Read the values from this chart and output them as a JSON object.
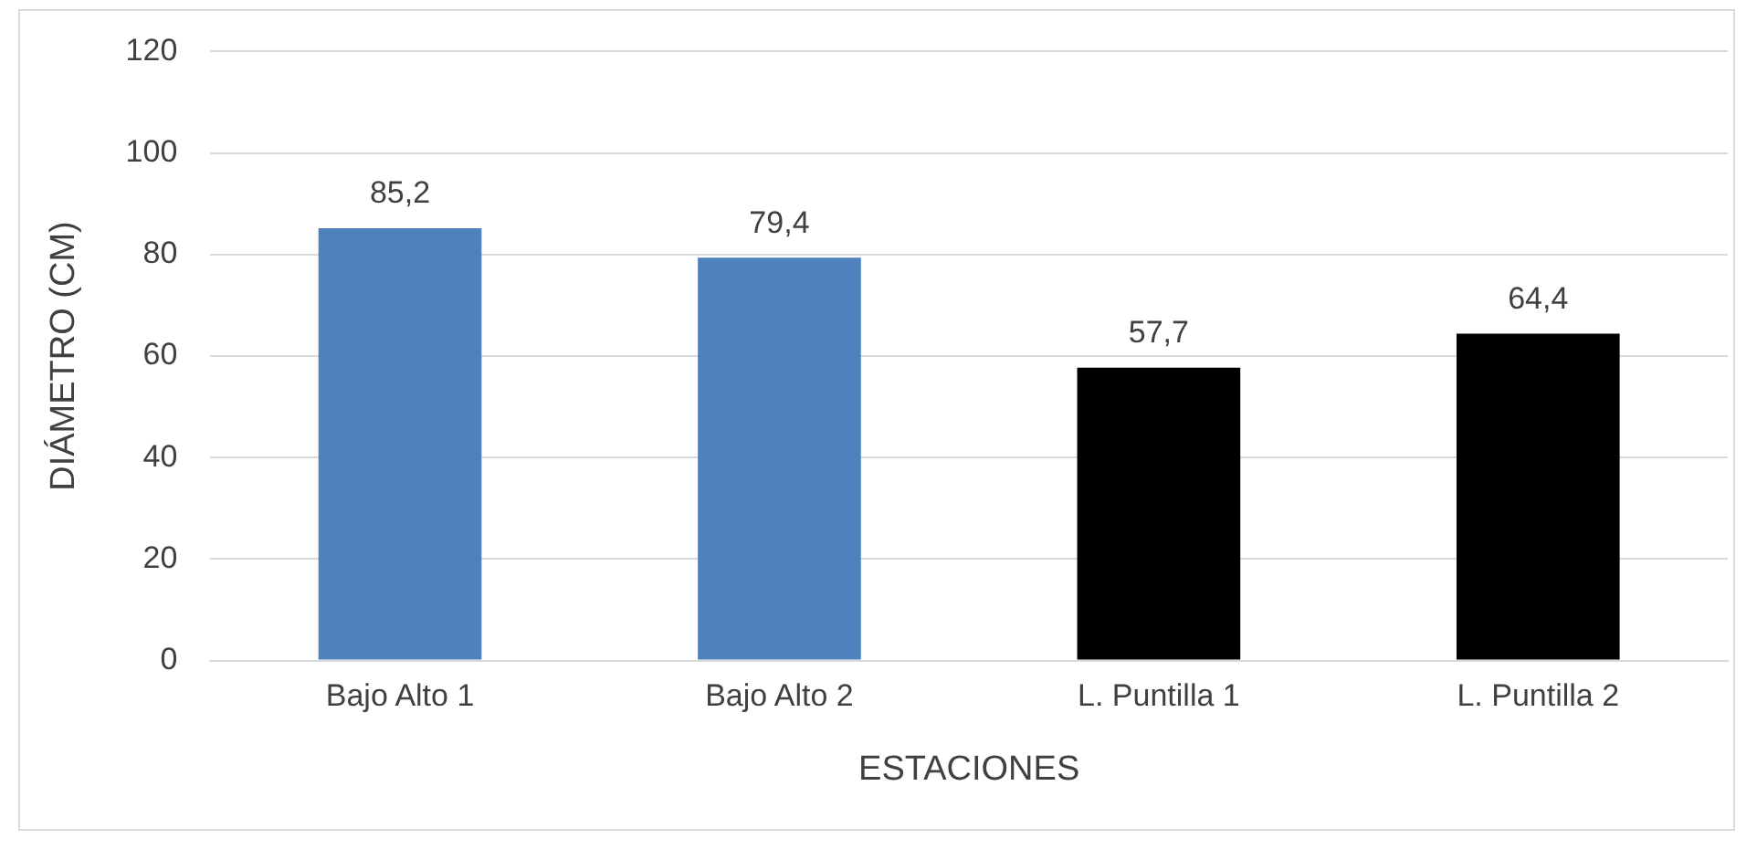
{
  "chart_data": {
    "type": "bar",
    "xlabel": "ESTACIONES",
    "ylabel": "DIÁMETRO (CM)",
    "categories": [
      "Bajo Alto 1",
      "Bajo Alto 2",
      "L. Puntilla 1",
      "L. Puntilla 2"
    ],
    "values": [
      85.2,
      79.4,
      57.7,
      64.4
    ],
    "colors": [
      "#4f81bd",
      "#4f81bd",
      "#000000",
      "#000000"
    ],
    "value_labels": [
      "85,2",
      "79,4",
      "57,7",
      "64,4"
    ],
    "ylim": [
      0,
      120
    ],
    "yticks": [
      0,
      20,
      40,
      60,
      80,
      100,
      120
    ],
    "grid": "y"
  }
}
